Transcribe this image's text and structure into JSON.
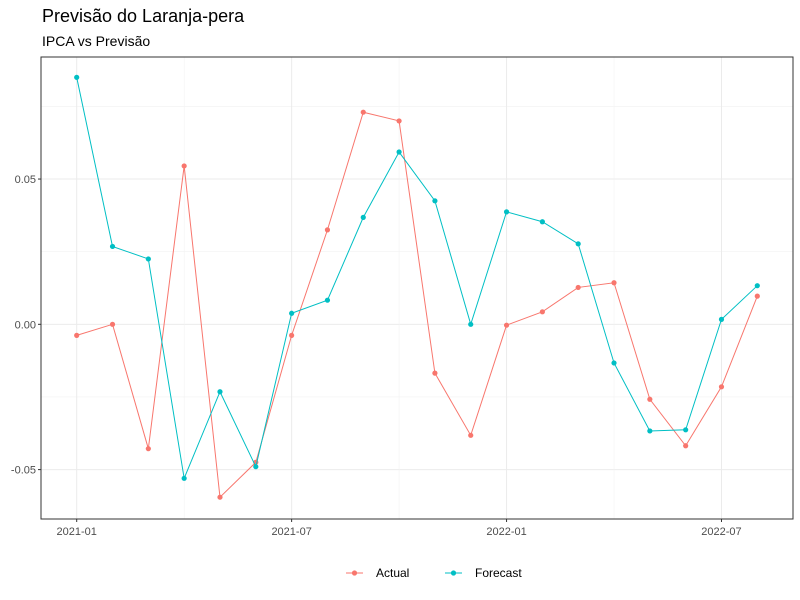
{
  "chart_data": {
    "type": "line",
    "title": "Previsão do Laranja-pera",
    "subtitle": "IPCA vs Previsão",
    "xlabel": "",
    "ylabel": "",
    "x": [
      "2021-01",
      "2021-02",
      "2021-03",
      "2021-04",
      "2021-05",
      "2021-06",
      "2021-07",
      "2021-08",
      "2021-09",
      "2021-10",
      "2021-11",
      "2021-12",
      "2022-01",
      "2022-02",
      "2022-03",
      "2022-04",
      "2022-05",
      "2022-06",
      "2022-07",
      "2022-08"
    ],
    "x_ticks": [
      "2021-01",
      "2021-07",
      "2022-01",
      "2022-07"
    ],
    "y_ticks": [
      -0.05,
      0.0,
      0.05
    ],
    "y_tick_labels": [
      "-0.05",
      "0.00",
      "0.05"
    ],
    "ylim": [
      -0.067,
      0.092
    ],
    "grid": true,
    "legend_position": "bottom",
    "series": [
      {
        "name": "Actual",
        "color": "#F8766D",
        "values": [
          -0.0038,
          0.0,
          -0.0428,
          0.0545,
          -0.0595,
          -0.0475,
          -0.0038,
          0.0325,
          0.073,
          0.07,
          -0.0168,
          -0.0382,
          -0.0003,
          0.0043,
          0.0127,
          0.0143,
          -0.0258,
          -0.0418,
          -0.0215,
          0.0097
        ]
      },
      {
        "name": "Forecast",
        "color": "#00BFC4",
        "values": [
          0.085,
          0.0268,
          0.0225,
          -0.053,
          -0.0232,
          -0.049,
          0.0038,
          0.0083,
          0.0368,
          0.0593,
          0.0425,
          0.0,
          0.0387,
          0.0353,
          0.0277,
          -0.0133,
          -0.0367,
          -0.0363,
          0.0017,
          0.0133
        ]
      }
    ]
  }
}
